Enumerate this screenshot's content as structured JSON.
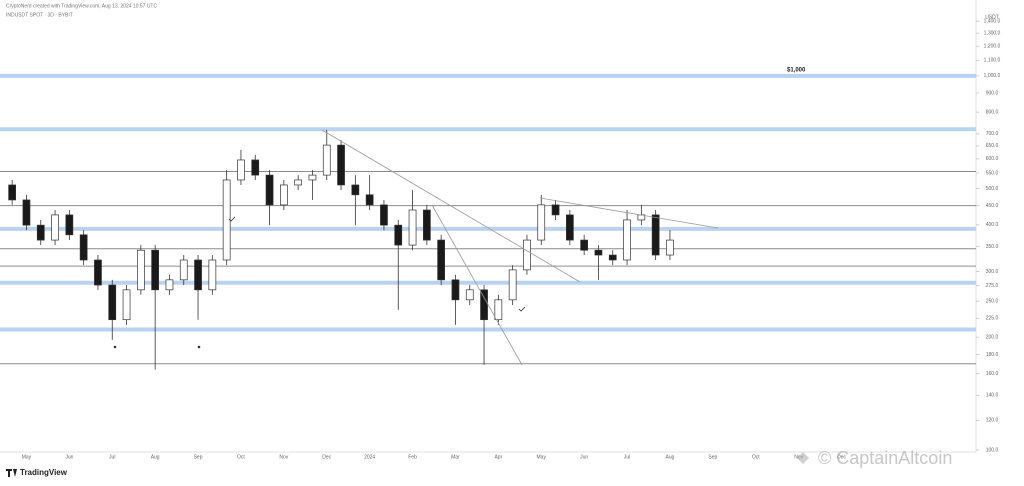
{
  "credit": "CryptoNerd created with TradingView.com, Aug 13, 2024 10:57 UTC",
  "brand": "TradingView",
  "watermark": "© CaptainAltcoin",
  "chart_data": {
    "type": "candlestick",
    "title": "INDUSDT SPOT · 3D · BYBIT",
    "y_axis_label": "USDT",
    "annotation": "$1,000",
    "log_scale": true,
    "ylim": [
      100,
      1500
    ],
    "yticks": [
      {
        "value": 1400,
        "label": "1,400.0"
      },
      {
        "value": 1300,
        "label": "1,300.0"
      },
      {
        "value": 1200,
        "label": "1,200.0"
      },
      {
        "value": 1100,
        "label": "1,100.0"
      },
      {
        "value": 1000,
        "label": "1,000.0"
      },
      {
        "value": 900,
        "label": "900.0"
      },
      {
        "value": 800,
        "label": "800.0"
      },
      {
        "value": 700,
        "label": "700.0"
      },
      {
        "value": 650,
        "label": "650.0"
      },
      {
        "value": 600,
        "label": "600.0"
      },
      {
        "value": 550,
        "label": "550.0"
      },
      {
        "value": 500,
        "label": "500.0"
      },
      {
        "value": 450,
        "label": "450.0"
      },
      {
        "value": 400,
        "label": "400.0"
      },
      {
        "value": 350,
        "label": "350.0"
      },
      {
        "value": 300,
        "label": "300.0"
      },
      {
        "value": 275,
        "label": "275.0"
      },
      {
        "value": 250,
        "label": "250.0"
      },
      {
        "value": 225,
        "label": "225.0"
      },
      {
        "value": 200,
        "label": "200.0"
      },
      {
        "value": 180,
        "label": "180.0"
      },
      {
        "value": 160,
        "label": "160.0"
      },
      {
        "value": 140,
        "label": "140.0"
      },
      {
        "value": 120,
        "label": "120.0"
      },
      {
        "value": 100,
        "label": "100.0"
      }
    ],
    "horizontal_lines": [
      {
        "value": 1000,
        "color": "#b9d2ef"
      },
      {
        "value": 720,
        "color": "#b9d2ef"
      },
      {
        "value": 555,
        "color": "#8c8c8c"
      },
      {
        "value": 450,
        "color": "#8c8c8c"
      },
      {
        "value": 390,
        "color": "#b9d2ef"
      },
      {
        "value": 345,
        "color": "#8c8c8c"
      },
      {
        "value": 310,
        "color": "#8c8c8c"
      },
      {
        "value": 280,
        "color": "#b9d2ef"
      },
      {
        "value": 210,
        "color": "#b9d2ef"
      },
      {
        "value": 170,
        "color": "#8c8c8c"
      }
    ],
    "categories": [
      null,
      "May",
      null,
      null,
      "Jun",
      null,
      null,
      "Jul",
      null,
      null,
      "Aug",
      null,
      null,
      "Sep",
      null,
      null,
      "Oct",
      null,
      null,
      "Nov",
      null,
      null,
      "Dec",
      null,
      null,
      "2024",
      null,
      null,
      "Feb",
      null,
      null,
      "Mar",
      null,
      null,
      "Apr",
      null,
      null,
      "May",
      null,
      null,
      "Jun",
      null,
      null,
      "Jul",
      null,
      null,
      "Aug",
      null,
      null,
      "Sep",
      null,
      null,
      "Oct",
      null,
      null,
      "Nov",
      null,
      null,
      "Dec",
      null
    ],
    "up_color": "#ffffff",
    "down_color": "#1a1a1a",
    "open": [
      511,
      466,
      399,
      364,
      425,
      376,
      322,
      276,
      223,
      268,
      342,
      268,
      285,
      322,
      268,
      322,
      527,
      596,
      543,
      452,
      511,
      527,
      543,
      653,
      511,
      481,
      452,
      399,
      353,
      438,
      364,
      285,
      252,
      268,
      223,
      252,
      303,
      364,
      452,
      425,
      364,
      342,
      332,
      322,
      412,
      425,
      332,
      null,
      null,
      null,
      null,
      null,
      null,
      null,
      null,
      null,
      null,
      null,
      null,
      null
    ],
    "high": [
      527,
      481,
      412,
      438,
      438,
      387,
      332,
      285,
      276,
      353,
      353,
      294,
      332,
      332,
      332,
      560,
      634,
      615,
      560,
      527,
      543,
      560,
      717,
      674,
      543,
      543,
      466,
      412,
      495,
      452,
      376,
      294,
      276,
      276,
      260,
      312,
      376,
      481,
      466,
      438,
      376,
      353,
      342,
      438,
      452,
      438,
      387,
      null,
      null,
      null,
      null,
      null,
      null,
      null,
      null,
      null,
      null,
      null,
      null,
      null
    ],
    "low": [
      452,
      387,
      353,
      353,
      364,
      312,
      268,
      197,
      216,
      260,
      164,
      260,
      276,
      223,
      260,
      312,
      511,
      527,
      399,
      438,
      495,
      466,
      527,
      495,
      399,
      438,
      387,
      237,
      342,
      353,
      276,
      216,
      244,
      169,
      216,
      244,
      294,
      353,
      412,
      353,
      332,
      285,
      312,
      312,
      399,
      322,
      322,
      null,
      null,
      null,
      null,
      null,
      null,
      null,
      null,
      null,
      null,
      null,
      null,
      null
    ],
    "close": [
      466,
      399,
      364,
      425,
      376,
      322,
      276,
      223,
      268,
      342,
      268,
      285,
      322,
      268,
      322,
      527,
      596,
      543,
      452,
      511,
      527,
      543,
      653,
      511,
      481,
      452,
      399,
      353,
      438,
      364,
      285,
      252,
      268,
      223,
      252,
      303,
      364,
      452,
      425,
      364,
      342,
      332,
      322,
      412,
      425,
      332,
      364,
      null,
      null,
      null,
      null,
      null,
      null,
      null,
      null,
      null,
      null,
      null,
      null,
      null
    ]
  }
}
